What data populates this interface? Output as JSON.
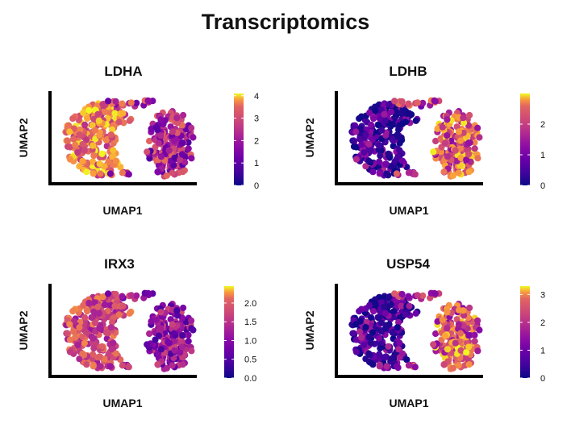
{
  "figure": {
    "title": "Transcriptomics"
  },
  "chart_data": [
    {
      "type": "scatter",
      "title": "LDHA",
      "xlabel": "UMAP1",
      "ylabel": "UMAP2",
      "colorbar": {
        "min": 0,
        "max": 4.1,
        "ticks": [
          0,
          1,
          2,
          3,
          4
        ],
        "tick_labels": [
          "0",
          "1",
          "2",
          "3",
          "4"
        ]
      },
      "expression_pattern": "high in left cluster, moderate in right cluster",
      "colormap": "plasma",
      "grid": false,
      "legend": "right"
    },
    {
      "type": "scatter",
      "title": "LDHB",
      "xlabel": "UMAP1",
      "ylabel": "UMAP2",
      "colorbar": {
        "min": 0,
        "max": 3.0,
        "ticks": [
          0,
          1,
          2
        ],
        "tick_labels": [
          "0",
          "1",
          "2"
        ]
      },
      "expression_pattern": "high in right cluster, low in left cluster",
      "colormap": "plasma",
      "grid": false,
      "legend": "right"
    },
    {
      "type": "scatter",
      "title": "IRX3",
      "xlabel": "UMAP1",
      "ylabel": "UMAP2",
      "colorbar": {
        "min": 0,
        "max": 2.45,
        "ticks": [
          0,
          0.5,
          1,
          1.5,
          2
        ],
        "tick_labels": [
          "0.0",
          "0.5",
          "1.0",
          "1.5",
          "2.0"
        ]
      },
      "expression_pattern": "moderate in left cluster, low in right cluster",
      "colormap": "plasma",
      "grid": false,
      "legend": "right"
    },
    {
      "type": "scatter",
      "title": "USP54",
      "xlabel": "UMAP1",
      "ylabel": "UMAP2",
      "colorbar": {
        "min": 0,
        "max": 3.3,
        "ticks": [
          0,
          1,
          2,
          3
        ],
        "tick_labels": [
          "0",
          "1",
          "2",
          "3"
        ]
      },
      "expression_pattern": "high in right cluster, low in left cluster",
      "colormap": "plasma",
      "grid": false,
      "legend": "right"
    }
  ]
}
